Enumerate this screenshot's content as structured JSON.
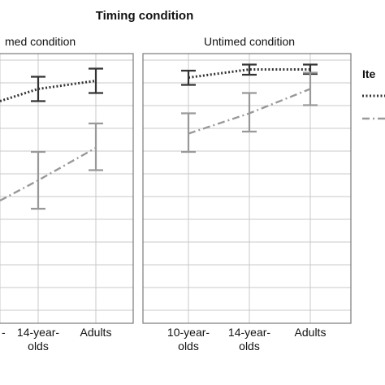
{
  "chart_data": {
    "type": "line",
    "title": "Timing condition",
    "legend_title": "Ite",
    "legend_position": "right",
    "grid": true,
    "ylim": [
      0,
      1
    ],
    "panels": [
      {
        "title": "med condition",
        "categories": [
          "",
          "14-year-\nolds",
          "Adults"
        ],
        "series": [
          {
            "style": "dotted",
            "color": "#333333",
            "values": [
              0.905,
              0.935,
              0.955
            ],
            "error_low": [
              0.88,
              0.905,
              0.925
            ],
            "error_high": [
              0.93,
              0.965,
              0.985
            ]
          },
          {
            "style": "dash-dot",
            "color": "#999999",
            "values": [
              0.66,
              0.71,
              0.79
            ],
            "error_low": [
              0.63,
              0.64,
              0.735
            ],
            "error_high": [
              0.69,
              0.78,
              0.85
            ]
          }
        ]
      },
      {
        "title": "Untimed condition",
        "categories": [
          "10-year-\nolds",
          "14-year-\nolds",
          "Adults"
        ],
        "series": [
          {
            "style": "dotted",
            "color": "#333333",
            "values": [
              0.963,
              0.983,
              0.983
            ],
            "error_low": [
              0.945,
              0.97,
              0.972
            ],
            "error_high": [
              0.98,
              0.995,
              0.995
            ]
          },
          {
            "style": "dash-dot",
            "color": "#999999",
            "values": [
              0.825,
              0.875,
              0.935
            ],
            "error_low": [
              0.78,
              0.83,
              0.895
            ],
            "error_high": [
              0.875,
              0.925,
              0.975
            ]
          }
        ]
      }
    ]
  },
  "colors": {
    "frame": "#7a7a7a",
    "grid": "#c8c8c8",
    "series_dark": "#333333",
    "series_light": "#999999"
  }
}
